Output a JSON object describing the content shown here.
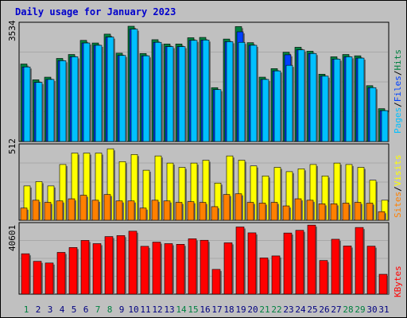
{
  "title": "Daily usage for January 2023",
  "colors": {
    "background": "#c0c0c0",
    "panel": "#c0c0c0",
    "title": "#0000cc",
    "hits": "#008040",
    "files": "#0040ff",
    "pages": "#00c0ff",
    "visits": "#ffff00",
    "sites": "#ff8000",
    "kbytes": "#ff0000",
    "weekend_label": "#008040",
    "weekday_label": "#000080"
  },
  "chart_data": [
    {
      "type": "bar",
      "panel": "hits-files-pages",
      "max_label": "3534",
      "ylim": [
        0,
        3534
      ],
      "legend": {
        "pages": "Pages",
        "files": "Files",
        "hits": "Hits",
        "sep": "/"
      },
      "categories": [
        "1",
        "2",
        "3",
        "4",
        "5",
        "6",
        "7",
        "8",
        "9",
        "10",
        "11",
        "12",
        "13",
        "14",
        "15",
        "16",
        "17",
        "18",
        "19",
        "20",
        "21",
        "22",
        "23",
        "24",
        "25",
        "26",
        "27",
        "28",
        "29",
        "30",
        "31"
      ],
      "series": [
        {
          "name": "Hits",
          "values": [
            2360,
            1880,
            1960,
            2530,
            2650,
            3080,
            3000,
            3270,
            2690,
            3510,
            2680,
            3100,
            2970,
            2970,
            3160,
            3170,
            1640,
            3120,
            3500,
            3010,
            1960,
            2220,
            2720,
            2870,
            2750,
            2050,
            2580,
            2650,
            2610,
            1700,
            1000
          ]
        },
        {
          "name": "Files",
          "values": [
            2270,
            1800,
            1890,
            2460,
            2580,
            3000,
            2930,
            3180,
            2620,
            3420,
            2610,
            3020,
            2890,
            2890,
            3080,
            3090,
            1580,
            3040,
            3340,
            2930,
            1890,
            2150,
            2640,
            2790,
            2680,
            1990,
            2510,
            2580,
            2540,
            1640,
            940
          ]
        },
        {
          "name": "Pages",
          "values": [
            2270,
            1800,
            1890,
            2460,
            2580,
            3000,
            2930,
            3180,
            2620,
            3420,
            2610,
            3020,
            2890,
            2890,
            3080,
            3090,
            1580,
            3040,
            3020,
            2930,
            1890,
            2150,
            2320,
            2790,
            2680,
            1990,
            2510,
            2580,
            2540,
            1640,
            940
          ]
        }
      ]
    },
    {
      "type": "bar",
      "panel": "visits-sites",
      "max_label": "512",
      "ylim": [
        0,
        512
      ],
      "legend": {
        "sites": "Sites",
        "visits": "Visits",
        "sep": "/"
      },
      "categories": [
        "1",
        "2",
        "3",
        "4",
        "5",
        "6",
        "7",
        "8",
        "9",
        "10",
        "11",
        "12",
        "13",
        "14",
        "15",
        "16",
        "17",
        "18",
        "19",
        "20",
        "21",
        "22",
        "23",
        "24",
        "25",
        "26",
        "27",
        "28",
        "29",
        "30",
        "31"
      ],
      "series": [
        {
          "name": "Visits",
          "values": [
            240,
            270,
            240,
            390,
            470,
            470,
            470,
            500,
            410,
            460,
            350,
            450,
            400,
            370,
            400,
            420,
            260,
            450,
            420,
            380,
            310,
            370,
            340,
            360,
            390,
            310,
            400,
            390,
            370,
            280,
            140
          ]
        },
        {
          "name": "Sites",
          "values": [
            85,
            140,
            125,
            135,
            150,
            175,
            140,
            180,
            135,
            135,
            85,
            140,
            135,
            125,
            130,
            125,
            95,
            180,
            185,
            125,
            120,
            125,
            100,
            150,
            140,
            115,
            115,
            120,
            125,
            120,
            60
          ]
        }
      ]
    },
    {
      "type": "bar",
      "panel": "kbytes",
      "max_label": "40601",
      "ylim": [
        0,
        40601
      ],
      "legend": {
        "kbytes": "KBytes"
      },
      "categories": [
        "1",
        "2",
        "3",
        "4",
        "5",
        "6",
        "7",
        "8",
        "9",
        "10",
        "11",
        "12",
        "13",
        "14",
        "15",
        "16",
        "17",
        "18",
        "19",
        "20",
        "21",
        "22",
        "23",
        "24",
        "25",
        "26",
        "27",
        "28",
        "29",
        "30",
        "31"
      ],
      "series": [
        {
          "name": "KBytes",
          "values": [
            24000,
            19500,
            18500,
            24800,
            27700,
            31900,
            30000,
            34200,
            34800,
            37400,
            28400,
            30900,
            30000,
            29600,
            32900,
            32000,
            14700,
            30500,
            39900,
            36400,
            21500,
            22700,
            36300,
            37900,
            41000,
            20000,
            32600,
            28600,
            39600,
            28500,
            11800
          ]
        }
      ]
    }
  ],
  "x_axis": {
    "labels": [
      "1",
      "2",
      "3",
      "4",
      "5",
      "6",
      "7",
      "8",
      "9",
      "10",
      "11",
      "12",
      "13",
      "14",
      "15",
      "16",
      "17",
      "18",
      "19",
      "20",
      "21",
      "22",
      "23",
      "24",
      "25",
      "26",
      "27",
      "28",
      "29",
      "30",
      "31"
    ],
    "weekend_days": [
      1,
      7,
      8,
      14,
      15,
      21,
      22,
      28,
      29
    ]
  }
}
